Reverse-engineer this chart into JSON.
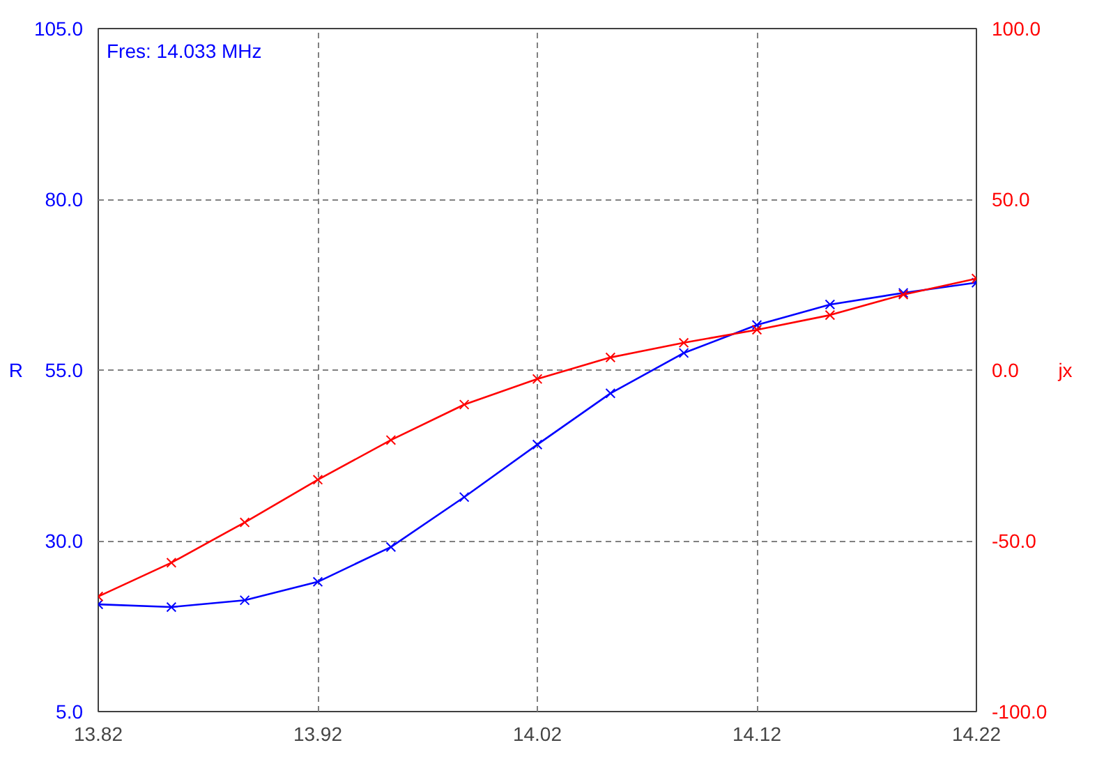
{
  "chart_data": {
    "type": "line",
    "ylabel": "R",
    "y2label": "jx",
    "annotations": [
      "Fres: 14.033 MHz"
    ],
    "x": [
      13.82,
      13.8533,
      13.8867,
      13.92,
      13.9533,
      13.9867,
      14.02,
      14.0533,
      14.0867,
      14.12,
      14.1533,
      14.1867,
      14.22
    ],
    "series": [
      {
        "color": "#0000ff",
        "values": [
          20.7,
          20.3,
          21.3,
          24.0,
          29.1,
          36.4,
          44.1,
          51.6,
          57.5,
          61.6,
          64.6,
          66.3,
          67.8
        ]
      },
      {
        "color": "#ff0000",
        "axis": "y2",
        "values": [
          -66.3,
          -56.4,
          -44.6,
          -32.1,
          -20.5,
          -10.1,
          -2.6,
          3.7,
          8.0,
          11.8,
          16.1,
          22.1,
          26.8
        ]
      }
    ],
    "xlim": [
      13.82,
      14.22
    ],
    "xticks": [
      13.82,
      13.92,
      14.02,
      14.12,
      14.22
    ],
    "ylim": [
      5,
      105
    ],
    "yticks": [
      {
        "value": 5,
        "label": "5.0"
      },
      {
        "value": 30,
        "label": "30.0"
      },
      {
        "value": 55,
        "label": "55.0"
      },
      {
        "value": 80,
        "label": "80.0"
      },
      {
        "value": 105,
        "label": "105.0"
      }
    ],
    "y2lim": [
      -100,
      100
    ],
    "y2ticks": [
      {
        "value": -100,
        "label": "-100.0"
      },
      {
        "value": -50,
        "label": "-50.0"
      },
      {
        "value": 0,
        "label": "0.0"
      },
      {
        "value": 50,
        "label": "50.0"
      },
      {
        "value": 100,
        "label": "100.0"
      }
    ],
    "grid": true,
    "marker": "cross",
    "line_style": "solid"
  }
}
